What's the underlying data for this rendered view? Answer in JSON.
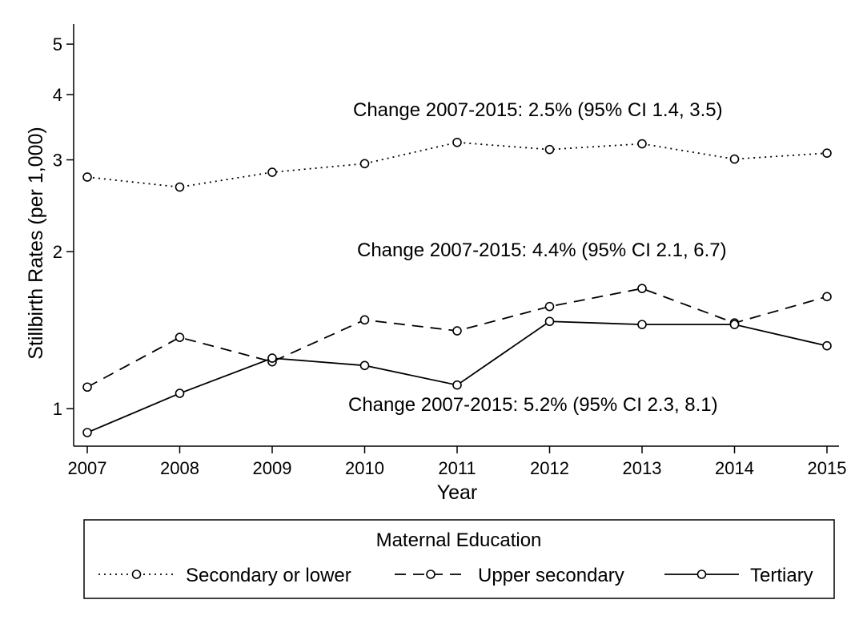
{
  "chart_data": {
    "type": "line",
    "xlabel": "Year",
    "ylabel": "Stillbirth Rates (per 1,000)",
    "y_scale": "log",
    "ylim": [
      0.9,
      5.2
    ],
    "yticks": [
      1,
      2,
      3,
      4,
      5
    ],
    "x": [
      2007,
      2008,
      2009,
      2010,
      2011,
      2012,
      2013,
      2014,
      2015
    ],
    "grid": false,
    "series": [
      {
        "name": "Secondary or lower",
        "dash": "dotted",
        "values": [
          2.78,
          2.66,
          2.84,
          2.95,
          3.24,
          3.14,
          3.22,
          3.01,
          3.09
        ]
      },
      {
        "name": "Upper secondary",
        "dash": "dashed",
        "values": [
          1.1,
          1.37,
          1.23,
          1.48,
          1.41,
          1.57,
          1.7,
          1.46,
          1.64
        ]
      },
      {
        "name": "Tertiary",
        "dash": "solid",
        "values": [
          0.9,
          1.07,
          1.25,
          1.21,
          1.11,
          1.47,
          1.45,
          1.45,
          1.32
        ]
      }
    ],
    "annotations": [
      {
        "text": "Change 2007-2015: 2.5% (95% CI 1.4, 3.5)"
      },
      {
        "text": "Change 2007-2015: 4.4% (95% CI 2.1, 6.7)"
      },
      {
        "text": "Change 2007-2015: 5.2% (95% CI 2.3, 8.1)"
      }
    ],
    "legend": {
      "title": "Maternal Education",
      "placement": "bottom"
    }
  }
}
